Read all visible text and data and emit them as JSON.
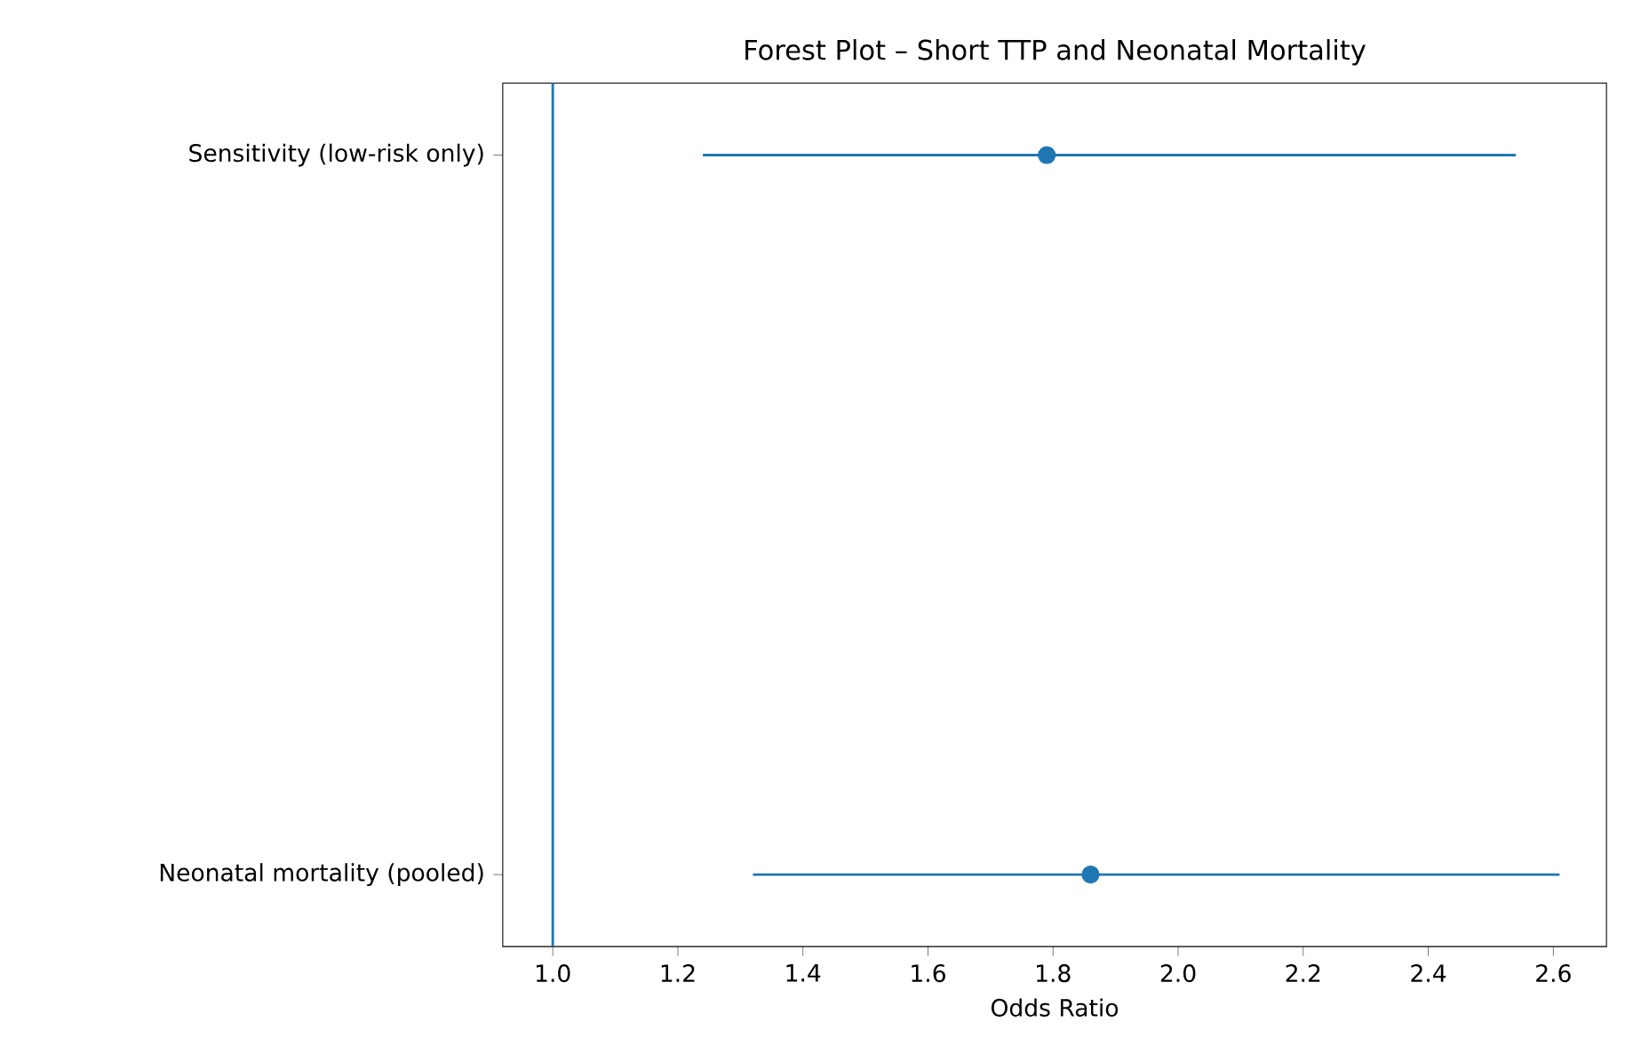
{
  "chart_data": {
    "type": "scatter",
    "title": "Forest Plot – Short TTP and Neonatal Mortality",
    "xlabel": "Odds Ratio",
    "orientation": "horizontal",
    "categories": [
      "Sensitivity (low-risk only)",
      "Neonatal mortality (pooled)"
    ],
    "values": [
      1.79,
      1.86
    ],
    "errors": [
      [
        1.24,
        2.54
      ],
      [
        1.32,
        2.61
      ]
    ],
    "color": "#1f77b4",
    "marker": "circle",
    "xlim": [
      0.92,
      2.685
    ],
    "xticks": [
      {
        "value": 1.0,
        "label": "1.0"
      },
      {
        "value": 1.2,
        "label": "1.2"
      },
      {
        "value": 1.4,
        "label": "1.4"
      },
      {
        "value": 1.6,
        "label": "1.6"
      },
      {
        "value": 1.8,
        "label": "1.8"
      },
      {
        "value": 2.0,
        "label": "2.0"
      },
      {
        "value": 2.2,
        "label": "2.2"
      },
      {
        "value": 2.4,
        "label": "2.4"
      },
      {
        "value": 2.6,
        "label": "2.6"
      }
    ],
    "ref_lines": [
      {
        "axis": "x",
        "value": 1.0,
        "color": "#1f77b4"
      }
    ]
  }
}
